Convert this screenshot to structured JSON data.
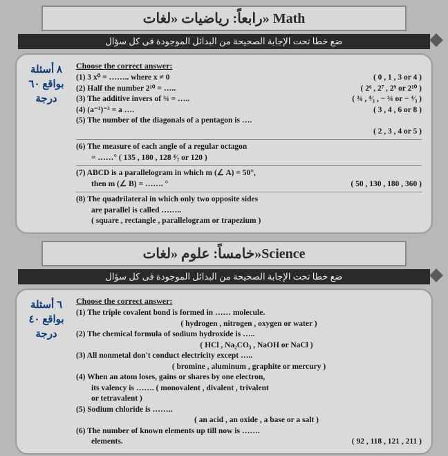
{
  "math": {
    "header": "رابعاً: رياضيات «لغات» Math",
    "instruction": "ضع خطا تحت الإجابة الصحيحة من البدائل الموجودة فى كل سؤال",
    "sidebar": {
      "l1": "٨ أسئلة",
      "l2": "بواقع ٦٠",
      "l3": "درجة"
    },
    "choose": "Choose the correct answer:",
    "q1": {
      "t": "(1) 3 x⁰ = …….. where x ≠ 0",
      "o": "( 0 , 1 , 3 or 4 )"
    },
    "q2": {
      "t": "(2) Half the number 2¹⁰ = …..",
      "o": "( 2⁶ , 2⁷ , 2⁹ or 2¹⁰ )"
    },
    "q3": {
      "t": "(3) The additive invers of ¾ = …..",
      "o": "( ¾ , ⁴⁄₃ , − ¾ or − ⁴⁄₃ )"
    },
    "q4": {
      "t": "(4) (a⁻¹)⁻³ = a ….",
      "o": "( 3 , 4 , 6 or 8 )"
    },
    "q5": {
      "t": "(5) The number of the diagonals of a pentagon is ….",
      "o": "( 2 , 3 , 4 or 5 )"
    },
    "q6": {
      "t": "(6) The measure of each angle of a regular octagon",
      "t2": "= ……°     ( 135 , 180 , 128 ⁴⁄₇ or 120 )"
    },
    "q7": {
      "t": "(7) ABCD is a parallelogram in which m (∠ A) = 50°,",
      "t2": "then m (∠ B) = ……. °",
      "o": "( 50 , 130 , 180 , 360 )"
    },
    "q8": {
      "t": "(8) The quadrilateral in which only two opposite sides",
      "t2": "are parallel is called ……..",
      "o": "( square , rectangle , parallelogram or trapezium )"
    }
  },
  "science": {
    "header": "خامساً: علوم «لغات»Science",
    "instruction": "ضع خطا تحت الإجابة الصحيحة من البدائل الموجودة فى كل سؤال",
    "sidebar": {
      "l1": "٦ أسئلة",
      "l2": "بواقع ٤٠",
      "l3": "درجة"
    },
    "choose": "Choose the correct answer:",
    "q1": {
      "t": "(1) The triple covalent bond is formed in …… molecule.",
      "o": "( hydrogen , nitrogen , oxygen or  water )"
    },
    "q2": {
      "t": "(2) The chemical formula of sodium hydroxide is …..",
      "o": "( HCl , Na₂CO₃ , NaOH or NaCl )"
    },
    "q3": {
      "t": "(3) All nonmetal don't conduct electricity except …..",
      "o": "( bromine , aluminum , graphite or mercury )"
    },
    "q4": {
      "t": "(4) When an atom loses, gains or shares by one electron,",
      "t2": "its valency is ……. ( monovalent , divalent , trivalent",
      "t3": "or tetravalent )"
    },
    "q5": {
      "t": "(5) Sodium chloride is ……..",
      "o": "( an acid , an oxide , a base or a salt )"
    },
    "q6": {
      "t": "(6) The number of known elements up till now is …….",
      "t2": "elements.",
      "o": "( 92 , 118 , 121 , 211 )"
    }
  }
}
